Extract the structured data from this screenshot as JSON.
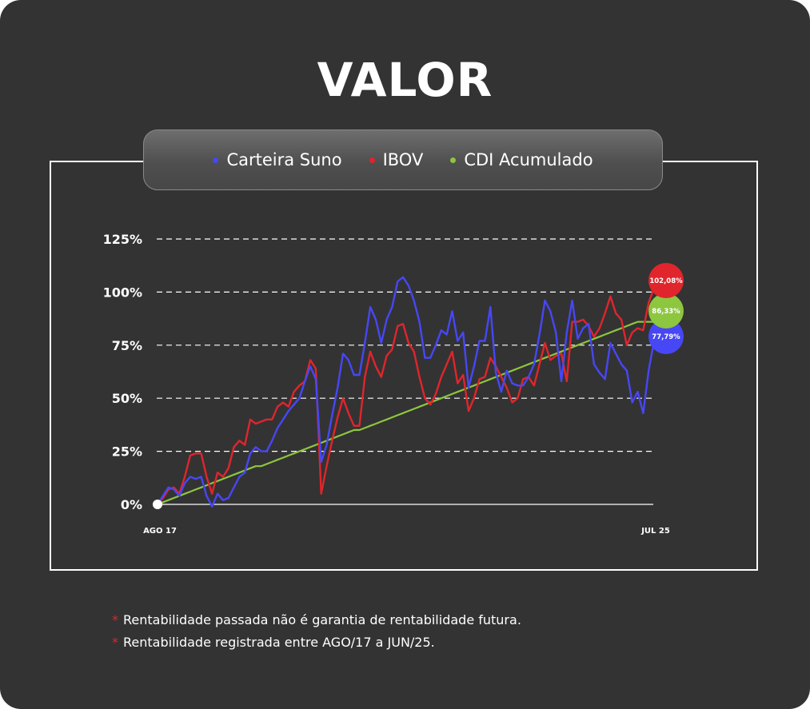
{
  "title": "VALOR",
  "colors": {
    "background": "#333333",
    "suno": "#4747f5",
    "ibov": "#e0252c",
    "cdi": "#8dc63f",
    "grid": "#ffffff"
  },
  "chart_data": {
    "type": "line",
    "ylim": [
      0,
      125
    ],
    "y_ticks": [
      "0%",
      "25%",
      "50%",
      "75%",
      "100%",
      "125%"
    ],
    "y_tick_values": [
      0,
      25,
      50,
      75,
      100,
      125
    ],
    "x_start_label": "AGO 17",
    "x_end_label": "JUL 25",
    "grid": "horizontal-dashed",
    "legend": "top-center",
    "series": [
      {
        "name": "Carteira Suno",
        "color": "#4747f5",
        "end_label": "77,79%",
        "values": [
          0,
          4,
          8,
          7,
          4,
          10,
          13,
          12,
          13,
          4,
          -1,
          5,
          2,
          3,
          8,
          13,
          15,
          24,
          27,
          25,
          25,
          30,
          36,
          40,
          44,
          47,
          50,
          58,
          65,
          59,
          20,
          28,
          42,
          55,
          71,
          68,
          61,
          61,
          76,
          93,
          87,
          76,
          87,
          93,
          105,
          107,
          103,
          96,
          86,
          69,
          69,
          75,
          82,
          80,
          91,
          77,
          81,
          55,
          65,
          77,
          77,
          93,
          62,
          53,
          63,
          57,
          56,
          56,
          60,
          66,
          80,
          96,
          91,
          81,
          58,
          81,
          96,
          78,
          83,
          85,
          66,
          62,
          59,
          76,
          71,
          66,
          63,
          48,
          53,
          43,
          63,
          77
        ]
      },
      {
        "name": "IBOV",
        "color": "#e0252c",
        "end_label": "102,08%",
        "values": [
          0,
          3,
          7,
          8,
          5,
          13,
          23,
          24,
          24,
          13,
          5,
          15,
          13,
          17,
          27,
          30,
          28,
          40,
          38,
          39,
          40,
          40,
          46,
          48,
          46,
          53,
          56,
          58,
          68,
          64,
          5,
          18,
          30,
          41,
          50,
          43,
          37,
          37,
          60,
          72,
          65,
          60,
          70,
          73,
          84,
          85,
          76,
          72,
          60,
          50,
          47,
          52,
          60,
          66,
          72,
          57,
          61,
          44,
          50,
          59,
          60,
          69,
          65,
          60,
          55,
          48,
          50,
          59,
          60,
          56,
          66,
          76,
          68,
          70,
          71,
          58,
          86,
          86,
          87,
          84,
          79,
          83,
          90,
          98,
          90,
          87,
          75,
          81,
          83,
          82,
          95,
          102
        ]
      },
      {
        "name": "CDI Acumulado",
        "color": "#8dc63f",
        "end_label": "86,33%",
        "values": [
          0,
          1,
          2,
          3,
          4,
          5,
          6,
          7,
          8,
          9,
          10,
          11,
          12,
          13,
          14,
          15,
          16,
          17,
          18,
          18,
          19,
          20,
          21,
          22,
          23,
          24,
          25,
          26,
          27,
          28,
          29,
          30,
          31,
          32,
          33,
          34,
          35,
          35,
          36,
          37,
          38,
          39,
          40,
          41,
          42,
          43,
          44,
          45,
          46,
          47,
          48,
          49,
          50,
          51,
          52,
          53,
          54,
          55,
          56,
          57,
          58,
          59,
          60,
          61,
          62,
          63,
          64,
          65,
          66,
          67,
          68,
          69,
          70,
          71,
          72,
          73,
          74,
          75,
          76,
          77,
          78,
          79,
          80,
          81,
          82,
          83,
          84,
          85,
          86,
          86,
          86,
          86
        ]
      }
    ]
  },
  "notes": [
    "Rentabilidade passada não é garantia de rentabilidade futura.",
    "Rentabilidade registrada entre AGO/17 a JUN/25."
  ],
  "note_marker": "*"
}
